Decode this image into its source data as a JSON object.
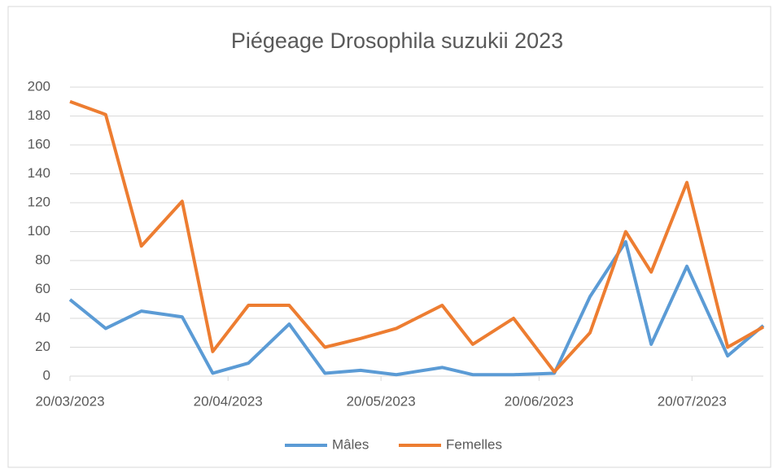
{
  "chart_data": {
    "type": "line",
    "title": "Piégeage Drosophila suzukii 2023",
    "x": [
      "2023-03-20",
      "2023-03-27",
      "2023-04-03",
      "2023-04-11",
      "2023-04-17",
      "2023-04-24",
      "2023-05-02",
      "2023-05-09",
      "2023-05-16",
      "2023-05-23",
      "2023-06-01",
      "2023-06-07",
      "2023-06-15",
      "2023-06-23",
      "2023-06-30",
      "2023-07-07",
      "2023-07-12",
      "2023-07-19",
      "2023-07-27",
      "2023-08-03"
    ],
    "series": [
      {
        "name": "Mâles",
        "color": "#5b9bd5",
        "values": [
          53,
          33,
          45,
          41,
          2,
          9,
          36,
          2,
          4,
          1,
          6,
          1,
          1,
          2,
          55,
          93,
          22,
          76,
          14,
          35
        ]
      },
      {
        "name": "Femelles",
        "color": "#ed7d31",
        "values": [
          190,
          181,
          90,
          121,
          17,
          49,
          49,
          20,
          26,
          33,
          49,
          22,
          40,
          3,
          30,
          100,
          72,
          134,
          20,
          34
        ]
      }
    ],
    "xlim": [
      "2023-03-20",
      "2023-08-03"
    ],
    "xticks": [
      {
        "value": "2023-03-20",
        "label": "20/03/2023"
      },
      {
        "value": "2023-04-20",
        "label": "20/04/2023"
      },
      {
        "value": "2023-05-20",
        "label": "20/05/2023"
      },
      {
        "value": "2023-06-20",
        "label": "20/06/2023"
      },
      {
        "value": "2023-07-20",
        "label": "20/07/2023"
      }
    ],
    "ylim": [
      0,
      200
    ],
    "yticks": [
      0,
      20,
      40,
      60,
      80,
      100,
      120,
      140,
      160,
      180,
      200
    ],
    "grid": true,
    "legend": "bottom"
  }
}
